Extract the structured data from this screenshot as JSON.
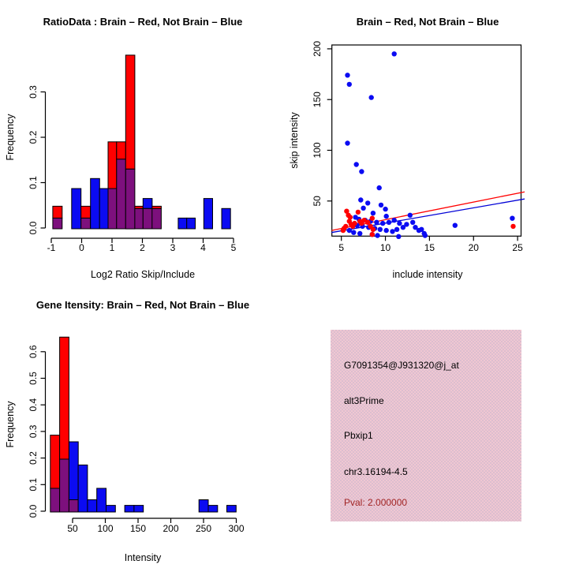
{
  "colors": {
    "red": "#ff0000",
    "blue": "#0b0bf2",
    "purple": "#7d107d",
    "line_red": "#ff0000",
    "line_blue": "#0000d6",
    "axis": "#000000",
    "info_bg": "#f0c7d2",
    "pval_text": "#a12424"
  },
  "chart_data": [
    {
      "id": "ratio_histogram",
      "type": "bar",
      "title": "RatioData : Brain – Red, Not Brain – Blue",
      "xlabel": "Log2 Ratio Skip/Include",
      "ylabel": "Frequency",
      "xlim": [
        -1.2,
        5.2
      ],
      "ylim": [
        0,
        0.395
      ],
      "grid": false,
      "xticks": [
        -1,
        0,
        1,
        2,
        3,
        4,
        5
      ],
      "xtick_labels": [
        "-1",
        "0",
        "1",
        "2",
        "3",
        "4",
        "5"
      ],
      "yticks": [
        0,
        0.1,
        0.2,
        0.3
      ],
      "ytick_labels": [
        "0.0",
        "0.1",
        "0.2",
        "0.3"
      ],
      "series_legend": {
        "red": "Brain",
        "blue": "Not Brain",
        "purple": "Overlap"
      },
      "bars": [
        {
          "x0": -0.95,
          "x1": -0.64,
          "segments": [
            {
              "to": 0.022,
              "color": "purple"
            },
            {
              "to": 0.048,
              "color": "red"
            }
          ]
        },
        {
          "x0": -0.33,
          "x1": -0.02,
          "segments": [
            {
              "to": 0.087,
              "color": "blue"
            }
          ]
        },
        {
          "x0": -0.02,
          "x1": 0.29,
          "segments": [
            {
              "to": 0.022,
              "color": "purple"
            },
            {
              "to": 0.048,
              "color": "red"
            }
          ]
        },
        {
          "x0": 0.29,
          "x1": 0.59,
          "segments": [
            {
              "to": 0.109,
              "color": "blue"
            }
          ]
        },
        {
          "x0": 0.59,
          "x1": 0.87,
          "segments": [
            {
              "to": 0.087,
              "color": "blue"
            }
          ]
        },
        {
          "x0": 0.87,
          "x1": 1.15,
          "segments": [
            {
              "to": 0.087,
              "color": "purple"
            },
            {
              "to": 0.19,
              "color": "red"
            }
          ]
        },
        {
          "x0": 1.15,
          "x1": 1.45,
          "segments": [
            {
              "to": 0.152,
              "color": "purple"
            },
            {
              "to": 0.19,
              "color": "red"
            }
          ]
        },
        {
          "x0": 1.45,
          "x1": 1.75,
          "segments": [
            {
              "to": 0.13,
              "color": "purple"
            },
            {
              "to": 0.381,
              "color": "red"
            }
          ]
        },
        {
          "x0": 1.75,
          "x1": 2.02,
          "segments": [
            {
              "to": 0.043,
              "color": "purple"
            },
            {
              "to": 0.048,
              "color": "red"
            }
          ]
        },
        {
          "x0": 2.02,
          "x1": 2.32,
          "segments": [
            {
              "to": 0.043,
              "color": "purple"
            },
            {
              "to": 0.065,
              "color": "blue"
            }
          ]
        },
        {
          "x0": 2.32,
          "x1": 2.62,
          "segments": [
            {
              "to": 0.043,
              "color": "purple"
            },
            {
              "to": 0.048,
              "color": "red"
            }
          ]
        },
        {
          "x0": 3.18,
          "x1": 3.46,
          "segments": [
            {
              "to": 0.022,
              "color": "blue"
            }
          ]
        },
        {
          "x0": 3.46,
          "x1": 3.74,
          "segments": [
            {
              "to": 0.022,
              "color": "blue"
            }
          ]
        },
        {
          "x0": 4.02,
          "x1": 4.31,
          "segments": [
            {
              "to": 0.065,
              "color": "blue"
            }
          ]
        },
        {
          "x0": 4.61,
          "x1": 4.9,
          "segments": [
            {
              "to": 0.043,
              "color": "blue"
            }
          ]
        }
      ]
    },
    {
      "id": "intensity_scatter",
      "type": "scatter",
      "title": "Brain – Red, Not Brain – Blue",
      "xlabel": "include intensity",
      "ylabel": "skip intensity",
      "xlim": [
        3.9,
        25.8
      ],
      "ylim": [
        12,
        204
      ],
      "grid": false,
      "xticks": [
        5,
        10,
        15,
        20,
        25
      ],
      "xtick_labels": [
        "5",
        "10",
        "15",
        "20",
        "25"
      ],
      "yticks": [
        50,
        100,
        150,
        200
      ],
      "ytick_labels": [
        "50",
        "100",
        "150",
        "200"
      ],
      "series": [
        {
          "name": "Not Brain",
          "color": "blue",
          "points": [
            [
              5.7,
              174
            ],
            [
              5.9,
              165
            ],
            [
              8.4,
              152
            ],
            [
              11.0,
              195
            ],
            [
              5.7,
              107
            ],
            [
              6.7,
              86
            ],
            [
              7.3,
              79
            ],
            [
              9.3,
              63
            ],
            [
              7.2,
              51
            ],
            [
              8.0,
              48
            ],
            [
              9.5,
              46
            ],
            [
              7.5,
              43
            ],
            [
              10.0,
              42
            ],
            [
              8.6,
              38
            ],
            [
              12.8,
              36
            ],
            [
              6.6,
              34
            ],
            [
              10.1,
              35
            ],
            [
              7.0,
              32
            ],
            [
              7.7,
              31
            ],
            [
              8.3,
              30
            ],
            [
              9.0,
              29
            ],
            [
              9.7,
              28
            ],
            [
              10.4,
              29
            ],
            [
              11.0,
              31
            ],
            [
              11.6,
              28
            ],
            [
              12.4,
              27
            ],
            [
              13.1,
              29
            ],
            [
              6.3,
              27
            ],
            [
              6.8,
              26
            ],
            [
              7.4,
              25
            ],
            [
              8.1,
              24
            ],
            [
              8.8,
              23
            ],
            [
              9.4,
              22
            ],
            [
              10.1,
              21
            ],
            [
              10.8,
              20
            ],
            [
              11.3,
              22
            ],
            [
              12.0,
              24
            ],
            [
              13.4,
              24
            ],
            [
              13.8,
              21
            ],
            [
              14.1,
              22
            ],
            [
              14.4,
              18
            ],
            [
              5.9,
              21
            ],
            [
              6.4,
              19
            ],
            [
              7.1,
              18
            ],
            [
              8.5,
              17
            ],
            [
              9.1,
              16
            ],
            [
              11.5,
              15
            ],
            [
              14.5,
              16
            ],
            [
              17.9,
              26
            ],
            [
              24.4,
              33
            ]
          ]
        },
        {
          "name": "Brain",
          "color": "red",
          "points": [
            [
              5.2,
              21
            ],
            [
              5.3,
              23
            ],
            [
              5.5,
              25
            ],
            [
              5.6,
              40
            ],
            [
              5.8,
              36
            ],
            [
              5.9,
              30
            ],
            [
              6.0,
              34
            ],
            [
              6.1,
              27
            ],
            [
              6.3,
              25
            ],
            [
              6.5,
              28
            ],
            [
              6.9,
              39
            ],
            [
              7.1,
              30
            ],
            [
              7.3,
              28
            ],
            [
              7.6,
              31
            ],
            [
              8.0,
              29
            ],
            [
              8.3,
              25
            ],
            [
              8.5,
              33
            ],
            [
              8.6,
              22
            ],
            [
              8.5,
              17
            ],
            [
              24.5,
              25
            ]
          ]
        }
      ],
      "regression_lines": [
        {
          "color": "line_blue",
          "from": [
            3.9,
            19
          ],
          "to": [
            25.8,
            52
          ]
        },
        {
          "color": "line_red",
          "from": [
            3.9,
            21
          ],
          "to": [
            25.8,
            59
          ]
        }
      ]
    },
    {
      "id": "gene_intensity_histogram",
      "type": "bar",
      "title": "Gene Itensity: Brain – Red, Not Brain – Blue",
      "xlabel": "Intensity",
      "ylabel": "Frequency",
      "xlim": [
        10,
        305
      ],
      "ylim": [
        0,
        0.68
      ],
      "grid": false,
      "xticks": [
        50,
        100,
        150,
        200,
        250,
        300
      ],
      "xtick_labels": [
        "50",
        "100",
        "150",
        "200",
        "250",
        "300"
      ],
      "yticks": [
        0,
        0.1,
        0.2,
        0.3,
        0.4,
        0.5,
        0.6
      ],
      "ytick_labels": [
        "0.0",
        "0.1",
        "0.2",
        "0.3",
        "0.4",
        "0.5",
        "0.6"
      ],
      "series_legend": {
        "red": "Brain",
        "blue": "Not Brain",
        "purple": "Overlap"
      },
      "bars": [
        {
          "x0": 16,
          "x1": 30.2,
          "segments": [
            {
              "to": 0.086,
              "color": "purple"
            },
            {
              "to": 0.286,
              "color": "red"
            }
          ]
        },
        {
          "x0": 30.2,
          "x1": 44.4,
          "segments": [
            {
              "to": 0.196,
              "color": "purple"
            },
            {
              "to": 0.655,
              "color": "red"
            }
          ]
        },
        {
          "x0": 44.4,
          "x1": 58.6,
          "segments": [
            {
              "to": 0.043,
              "color": "purple"
            },
            {
              "to": 0.261,
              "color": "blue"
            }
          ]
        },
        {
          "x0": 58.6,
          "x1": 72.8,
          "segments": [
            {
              "to": 0.174,
              "color": "blue"
            }
          ]
        },
        {
          "x0": 72.8,
          "x1": 87,
          "segments": [
            {
              "to": 0.043,
              "color": "blue"
            }
          ]
        },
        {
          "x0": 87,
          "x1": 101.2,
          "segments": [
            {
              "to": 0.086,
              "color": "blue"
            }
          ]
        },
        {
          "x0": 101.2,
          "x1": 115.4,
          "segments": [
            {
              "to": 0.022,
              "color": "blue"
            }
          ]
        },
        {
          "x0": 129.6,
          "x1": 143.8,
          "segments": [
            {
              "to": 0.022,
              "color": "blue"
            }
          ]
        },
        {
          "x0": 143.8,
          "x1": 158,
          "segments": [
            {
              "to": 0.022,
              "color": "blue"
            }
          ]
        },
        {
          "x0": 243,
          "x1": 257.2,
          "segments": [
            {
              "to": 0.043,
              "color": "blue"
            }
          ]
        },
        {
          "x0": 257.2,
          "x1": 271.4,
          "segments": [
            {
              "to": 0.022,
              "color": "blue"
            }
          ]
        },
        {
          "x0": 285.6,
          "x1": 299.8,
          "segments": [
            {
              "to": 0.022,
              "color": "blue"
            }
          ]
        }
      ]
    }
  ],
  "info_panel": {
    "probe_id": "G7091354@J931320@j_at",
    "splice_type": "alt3Prime",
    "gene_name": "Pbxip1",
    "location": "chr3.16194-4.5",
    "pval": "Pval: 2.000000"
  }
}
